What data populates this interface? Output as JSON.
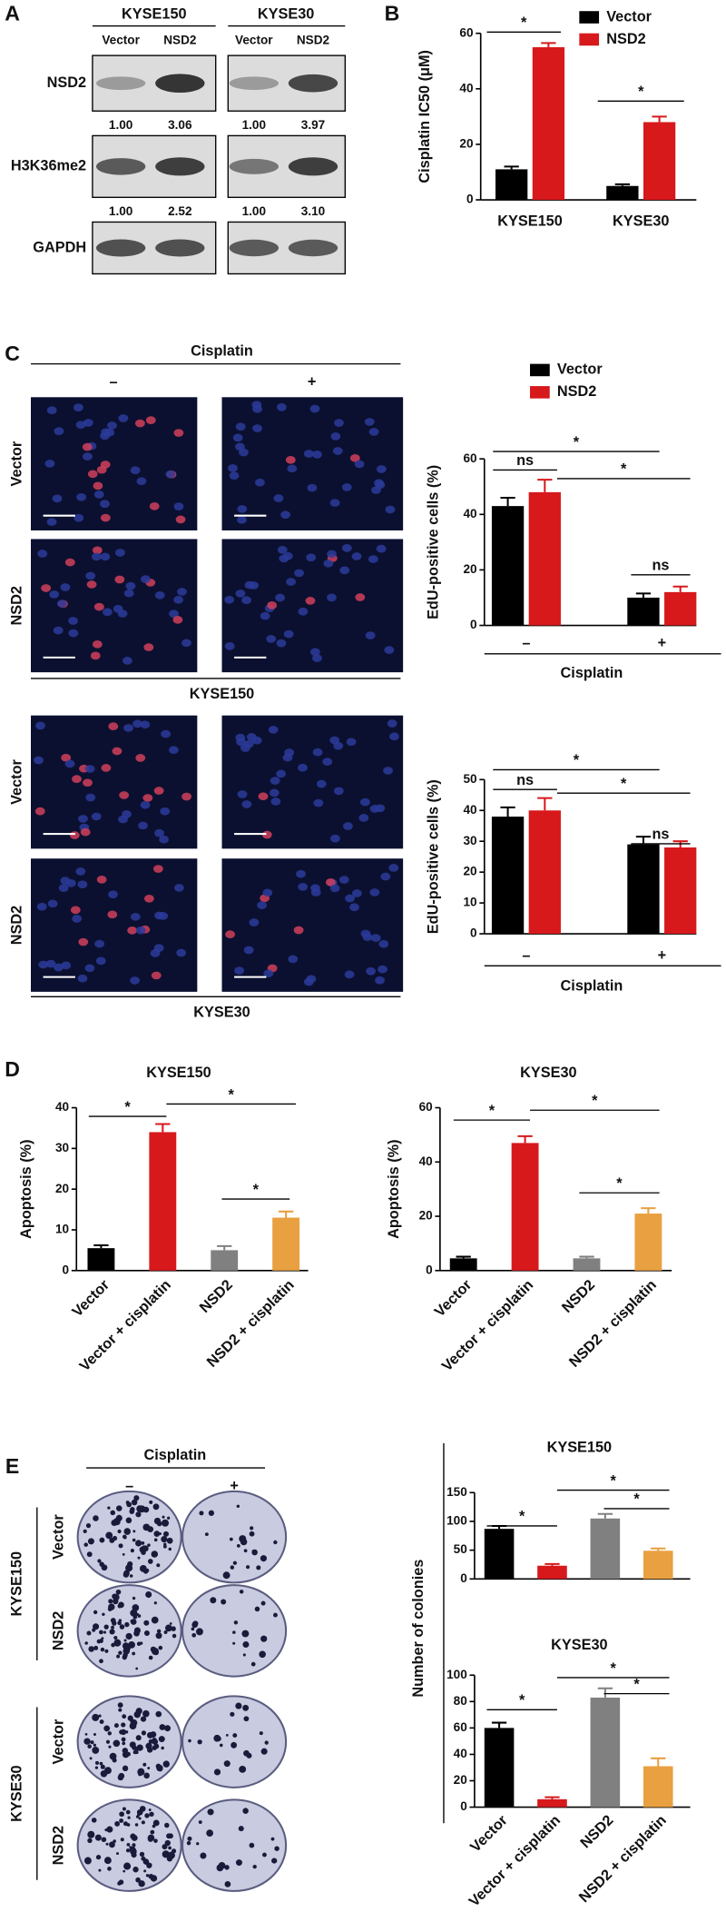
{
  "blot": {
    "panel": "A",
    "cell_lines": [
      "KYSE150",
      "KYSE30"
    ],
    "lanes": [
      "Vector",
      "NSD2",
      "Vector",
      "NSD2"
    ],
    "rows": [
      {
        "label": "NSD2",
        "quant": [
          "1.00",
          "3.06",
          "1.00",
          "3.97"
        ]
      },
      {
        "label": "H3K36me2",
        "quant": [
          "1.00",
          "2.52",
          "1.00",
          "3.10"
        ]
      },
      {
        "label": "GAPDH"
      }
    ]
  },
  "edu_images": {
    "panel": "C",
    "treatment": "Cisplatin",
    "conditions": [
      "–",
      "+"
    ],
    "groups": [
      {
        "cell_line": "KYSE150",
        "rows": [
          "Vector",
          "NSD2"
        ]
      },
      {
        "cell_line": "KYSE30",
        "rows": [
          "Vector",
          "NSD2"
        ]
      }
    ]
  },
  "colony_images": {
    "panel": "E",
    "treatment": "Cisplatin",
    "conditions": [
      "–",
      "+"
    ],
    "groups": [
      {
        "cell_line": "KYSE150",
        "rows": [
          "Vector",
          "NSD2"
        ]
      },
      {
        "cell_line": "KYSE30",
        "rows": [
          "Vector",
          "NSD2"
        ]
      }
    ]
  },
  "chart_data": [
    {
      "type": "grouped_bar",
      "panel": "B",
      "y_label": "Cisplatin IC50 (μM)",
      "categories": [
        "KYSE150",
        "KYSE30"
      ],
      "series": [
        {
          "name": "Vector",
          "color": "#000000",
          "values": [
            11,
            5
          ],
          "errors": [
            1,
            0.6
          ]
        },
        {
          "name": "NSD2",
          "color": "#d7191c",
          "values": [
            55,
            28
          ],
          "errors": [
            1.5,
            2
          ]
        }
      ],
      "ylim": [
        0,
        60
      ],
      "yticks": [
        0,
        20,
        40,
        60
      ],
      "annotations": [
        "*",
        "*"
      ]
    },
    {
      "type": "grouped_bar",
      "y_label": "EdU-positive cells (%)",
      "x_label": "Cisplatin",
      "categories": [
        "–",
        "+"
      ],
      "series": [
        {
          "name": "Vector",
          "color": "#000000",
          "values": [
            43,
            10
          ],
          "errors": [
            3,
            1.5
          ]
        },
        {
          "name": "NSD2",
          "color": "#d7191c",
          "values": [
            48,
            12
          ],
          "errors": [
            4.5,
            2
          ]
        }
      ],
      "ylim": [
        0,
        60
      ],
      "yticks": [
        0,
        20,
        40,
        60
      ],
      "annotations": [
        "*",
        "ns",
        "*",
        "ns"
      ]
    },
    {
      "type": "grouped_bar",
      "y_label": "EdU-positive cells (%)",
      "x_label": "Cisplatin",
      "categories": [
        "–",
        "+"
      ],
      "series": [
        {
          "color": "#000000",
          "values": [
            38,
            29
          ],
          "errors": [
            3,
            2.5
          ]
        },
        {
          "color": "#d7191c",
          "values": [
            40,
            28
          ],
          "errors": [
            4,
            2
          ]
        }
      ],
      "ylim": [
        0,
        50
      ],
      "yticks": [
        0,
        10,
        20,
        30,
        40,
        50
      ],
      "annotations": [
        "*",
        "ns",
        "*",
        "ns"
      ]
    },
    {
      "type": "bar",
      "panel": "D",
      "title": "KYSE150",
      "y_label": "Apoptosis (%)",
      "categories": [
        "Vector",
        "Vector + cisplatin",
        "NSD2",
        "NSD2 + cisplatin"
      ],
      "values": [
        5.5,
        34,
        5,
        13
      ],
      "errors": [
        0.7,
        2,
        1,
        1.5
      ],
      "colors": [
        "#000000",
        "#d7191c",
        "#808080",
        "#e8a040"
      ],
      "ylim": [
        0,
        40
      ],
      "yticks": [
        0,
        10,
        20,
        30,
        40
      ],
      "annotations": [
        "*",
        "*",
        "*"
      ]
    },
    {
      "type": "bar",
      "title": "KYSE30",
      "y_label": "Apoptosis (%)",
      "categories": [
        "Vector",
        "Vector + cisplatin",
        "NSD2",
        "NSD2 + cisplatin"
      ],
      "values": [
        4.5,
        47,
        4.5,
        21
      ],
      "errors": [
        0.6,
        2.5,
        0.6,
        2
      ],
      "colors": [
        "#000000",
        "#d7191c",
        "#808080",
        "#e8a040"
      ],
      "ylim": [
        0,
        60
      ],
      "yticks": [
        0,
        20,
        40,
        60
      ],
      "annotations": [
        "*",
        "*",
        "*"
      ]
    },
    {
      "type": "bar",
      "title": "KYSE150",
      "y_label": "Number of colonies",
      "values": [
        87,
        23,
        105,
        49
      ],
      "errors": [
        5,
        3,
        8,
        4
      ],
      "colors": [
        "#000000",
        "#d7191c",
        "#808080",
        "#e8a040"
      ],
      "ylim": [
        0,
        150
      ],
      "yticks": [
        0,
        50,
        100,
        150
      ],
      "annotations": [
        "*",
        "*",
        "*"
      ]
    },
    {
      "type": "bar",
      "title": "KYSE30",
      "categories": [
        "Vector",
        "Vector + cisplatin",
        "NSD2",
        "NSD2 + cisplatin"
      ],
      "values": [
        60,
        6,
        83,
        31
      ],
      "errors": [
        4,
        1.5,
        7,
        6
      ],
      "colors": [
        "#000000",
        "#d7191c",
        "#808080",
        "#e8a040"
      ],
      "ylim": [
        0,
        100
      ],
      "yticks": [
        0,
        20,
        40,
        60,
        80,
        100
      ],
      "annotations": [
        "*",
        "*",
        "*"
      ]
    }
  ]
}
